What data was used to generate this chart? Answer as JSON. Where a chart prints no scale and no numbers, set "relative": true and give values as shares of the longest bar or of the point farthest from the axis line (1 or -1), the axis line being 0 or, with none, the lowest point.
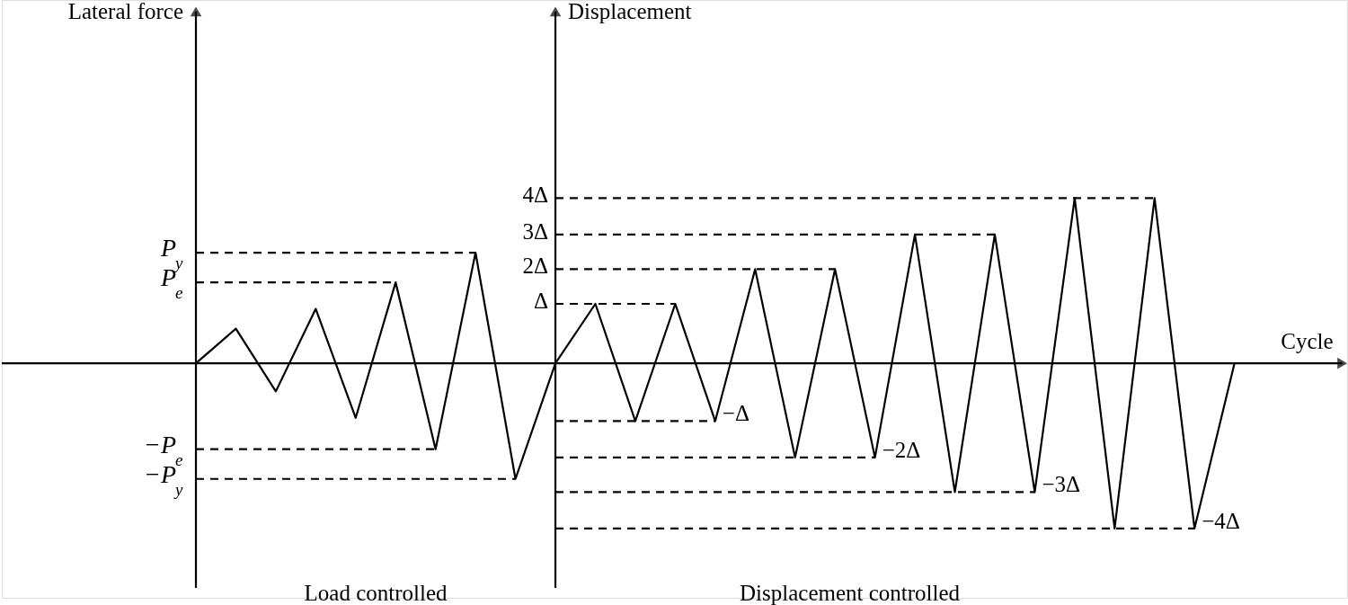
{
  "chart_data": {
    "type": "line",
    "relative": true,
    "xlabel": "Cycle",
    "categories": [
      null,
      null,
      null,
      null,
      null,
      null,
      null,
      null,
      null,
      null,
      null,
      null,
      null,
      null,
      null,
      null,
      null,
      null,
      null,
      null,
      null,
      null,
      null,
      null,
      null,
      null,
      null
    ],
    "series": [
      {
        "color": "#000000",
        "line_style": "solid",
        "values": [
          0,
          0.21,
          -0.17,
          0.33,
          -0.33,
          0.49,
          -0.52,
          0.67,
          -0.7,
          0,
          0.36,
          -0.35,
          0.36,
          -0.35,
          0.57,
          -0.57,
          0.57,
          -0.57,
          0.78,
          -0.78,
          0.78,
          -0.78,
          1,
          -1,
          1,
          -1,
          0
        ]
      },
      {
        "color": "#000000",
        "line_style": "dashed",
        "values": [
          0.67,
          0.67,
          0.67,
          0.67,
          0.67,
          0.67,
          0.67,
          0.67,
          null,
          null,
          null,
          null,
          null,
          null,
          null,
          null,
          null,
          null,
          null,
          null,
          null,
          null,
          null,
          null,
          null,
          null,
          null
        ]
      },
      {
        "color": "#000000",
        "line_style": "dashed",
        "values": [
          0.49,
          0.49,
          0.49,
          0.49,
          0.49,
          0.49,
          null,
          null,
          null,
          null,
          null,
          null,
          null,
          null,
          null,
          null,
          null,
          null,
          null,
          null,
          null,
          null,
          null,
          null,
          null,
          null,
          null
        ]
      },
      {
        "color": "#000000",
        "line_style": "dashed",
        "values": [
          -0.52,
          -0.52,
          -0.52,
          -0.52,
          -0.52,
          -0.52,
          -0.52,
          null,
          null,
          null,
          null,
          null,
          null,
          null,
          null,
          null,
          null,
          null,
          null,
          null,
          null,
          null,
          null,
          null,
          null,
          null,
          null
        ]
      },
      {
        "color": "#000000",
        "line_style": "dashed",
        "values": [
          -0.7,
          -0.7,
          -0.7,
          -0.7,
          -0.7,
          -0.7,
          -0.7,
          -0.7,
          -0.7,
          null,
          null,
          null,
          null,
          null,
          null,
          null,
          null,
          null,
          null,
          null,
          null,
          null,
          null,
          null,
          null,
          null,
          null
        ]
      },
      {
        "color": "#000000",
        "line_style": "dashed",
        "values": [
          null,
          null,
          null,
          null,
          null,
          null,
          null,
          null,
          null,
          0.36,
          0.36,
          0.36,
          0.36,
          null,
          null,
          null,
          null,
          null,
          null,
          null,
          null,
          null,
          null,
          null,
          null,
          null,
          null
        ]
      },
      {
        "color": "#000000",
        "line_style": "dashed",
        "values": [
          null,
          null,
          null,
          null,
          null,
          null,
          null,
          null,
          null,
          0.57,
          0.57,
          0.57,
          0.57,
          0.57,
          0.57,
          0.57,
          0.57,
          null,
          null,
          null,
          null,
          null,
          null,
          null,
          null,
          null,
          null
        ]
      },
      {
        "color": "#000000",
        "line_style": "dashed",
        "values": [
          null,
          null,
          null,
          null,
          null,
          null,
          null,
          null,
          null,
          0.78,
          0.78,
          0.78,
          0.78,
          0.78,
          0.78,
          0.78,
          0.78,
          0.78,
          0.78,
          0.78,
          0.78,
          null,
          null,
          null,
          null,
          null,
          null
        ]
      },
      {
        "color": "#000000",
        "line_style": "dashed",
        "values": [
          null,
          null,
          null,
          null,
          null,
          null,
          null,
          null,
          null,
          1,
          1,
          1,
          1,
          1,
          1,
          1,
          1,
          1,
          1,
          1,
          1,
          1,
          1,
          1,
          1,
          null,
          null
        ]
      },
      {
        "color": "#000000",
        "line_style": "dashed",
        "values": [
          null,
          null,
          null,
          null,
          null,
          null,
          null,
          null,
          null,
          -0.35,
          -0.35,
          -0.35,
          -0.35,
          -0.35,
          null,
          null,
          null,
          null,
          null,
          null,
          null,
          null,
          null,
          null,
          null,
          null,
          null
        ]
      },
      {
        "color": "#000000",
        "line_style": "dashed",
        "values": [
          null,
          null,
          null,
          null,
          null,
          null,
          null,
          null,
          null,
          -0.57,
          -0.57,
          -0.57,
          -0.57,
          -0.57,
          -0.57,
          -0.57,
          -0.57,
          -0.57,
          null,
          null,
          null,
          null,
          null,
          null,
          null,
          null,
          null
        ]
      },
      {
        "color": "#000000",
        "line_style": "dashed",
        "values": [
          null,
          null,
          null,
          null,
          null,
          null,
          null,
          null,
          null,
          -0.78,
          -0.78,
          -0.78,
          -0.78,
          -0.78,
          -0.78,
          -0.78,
          -0.78,
          -0.78,
          -0.78,
          -0.78,
          -0.78,
          -0.78,
          null,
          null,
          null,
          null,
          null
        ]
      },
      {
        "color": "#000000",
        "line_style": "dashed",
        "values": [
          null,
          null,
          null,
          null,
          null,
          null,
          null,
          null,
          null,
          -1,
          -1,
          -1,
          -1,
          -1,
          -1,
          -1,
          -1,
          -1,
          -1,
          -1,
          -1,
          -1,
          -1,
          -1,
          -1,
          -1,
          null
        ]
      }
    ],
    "annotations": [
      "Lateral force",
      "Displacement",
      "Load controlled",
      "Displacement controlled",
      "P$_{y}$",
      "P$_{e}$",
      "−P$_{e}$",
      "−P$_{y}$",
      "Δ",
      "2Δ",
      "3Δ",
      "4Δ",
      "−Δ",
      "−2Δ",
      "−3Δ",
      "−4Δ"
    ]
  }
}
